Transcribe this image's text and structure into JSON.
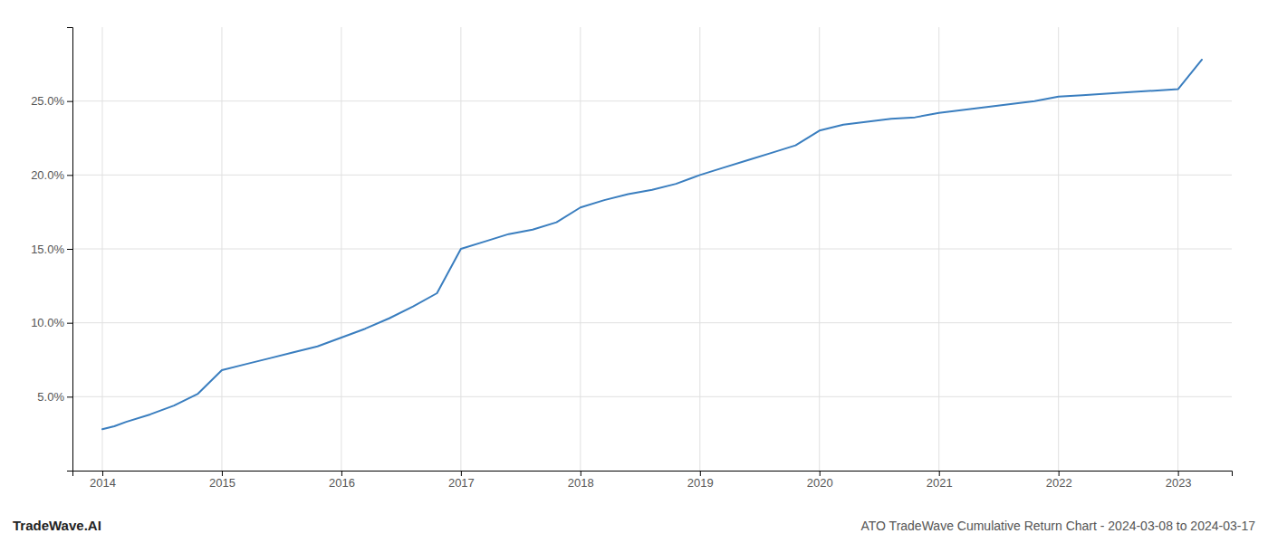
{
  "chart_data": {
    "type": "line",
    "title": "ATO TradeWave Cumulative Return Chart - 2024-03-08 to 2024-03-17",
    "annotations": [
      "TradeWave.AI"
    ],
    "color": "#3a7ebf",
    "grid": true,
    "x": [
      2014.0,
      2014.1,
      2014.2,
      2014.4,
      2014.6,
      2014.8,
      2015.0,
      2015.2,
      2015.4,
      2015.6,
      2015.8,
      2016.0,
      2016.2,
      2016.4,
      2016.6,
      2016.8,
      2017.0,
      2017.2,
      2017.4,
      2017.6,
      2017.8,
      2018.0,
      2018.2,
      2018.4,
      2018.6,
      2018.8,
      2019.0,
      2019.2,
      2019.4,
      2019.6,
      2019.8,
      2020.0,
      2020.1,
      2020.2,
      2020.4,
      2020.6,
      2020.8,
      2021.0,
      2021.2,
      2021.4,
      2021.6,
      2021.8,
      2022.0,
      2022.2,
      2022.4,
      2022.6,
      2022.8,
      2023.0,
      2023.2
    ],
    "values": [
      0.028,
      0.03,
      0.033,
      0.038,
      0.044,
      0.052,
      0.068,
      0.072,
      0.076,
      0.08,
      0.084,
      0.09,
      0.096,
      0.103,
      0.111,
      0.12,
      0.15,
      0.155,
      0.16,
      0.163,
      0.168,
      0.178,
      0.183,
      0.187,
      0.19,
      0.194,
      0.2,
      0.205,
      0.21,
      0.215,
      0.22,
      0.23,
      0.232,
      0.234,
      0.236,
      0.238,
      0.239,
      0.242,
      0.244,
      0.246,
      0.248,
      0.25,
      0.253,
      0.254,
      0.255,
      0.256,
      0.257,
      0.258,
      0.278
    ],
    "xlim": [
      2013.75,
      2023.45
    ],
    "xticks": [
      2014,
      2015,
      2016,
      2017,
      2018,
      2019,
      2020,
      2021,
      2022,
      2023
    ],
    "ylim": [
      0.0,
      0.3
    ],
    "yticks": [
      {
        "value": 0.05,
        "label": "5.0%"
      },
      {
        "value": 0.1,
        "label": "10.0%"
      },
      {
        "value": 0.15,
        "label": "15.0%"
      },
      {
        "value": 0.2,
        "label": "20.0%"
      },
      {
        "value": 0.25,
        "label": "25.0%"
      }
    ]
  }
}
